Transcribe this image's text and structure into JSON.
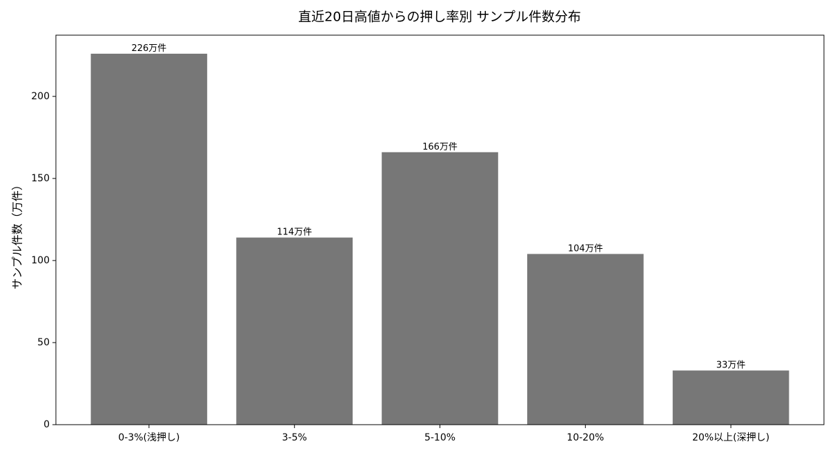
{
  "chart_data": {
    "type": "bar",
    "title": "直近20日高値からの押し率別 サンプル件数分布",
    "y_label": "サンプル件数（万件）",
    "categories": [
      "0-3%(浅押し)",
      "3-5%",
      "5-10%",
      "10-20%",
      "20%以上(深押し)"
    ],
    "values": [
      226,
      114,
      166,
      104,
      33
    ],
    "value_labels": [
      "226万件",
      "114万件",
      "166万件",
      "104万件",
      "33万件"
    ],
    "color": "#777777",
    "ylim": [
      0,
      237.3
    ],
    "yticks": [
      0,
      50,
      100,
      150,
      200
    ],
    "grid": false
  }
}
